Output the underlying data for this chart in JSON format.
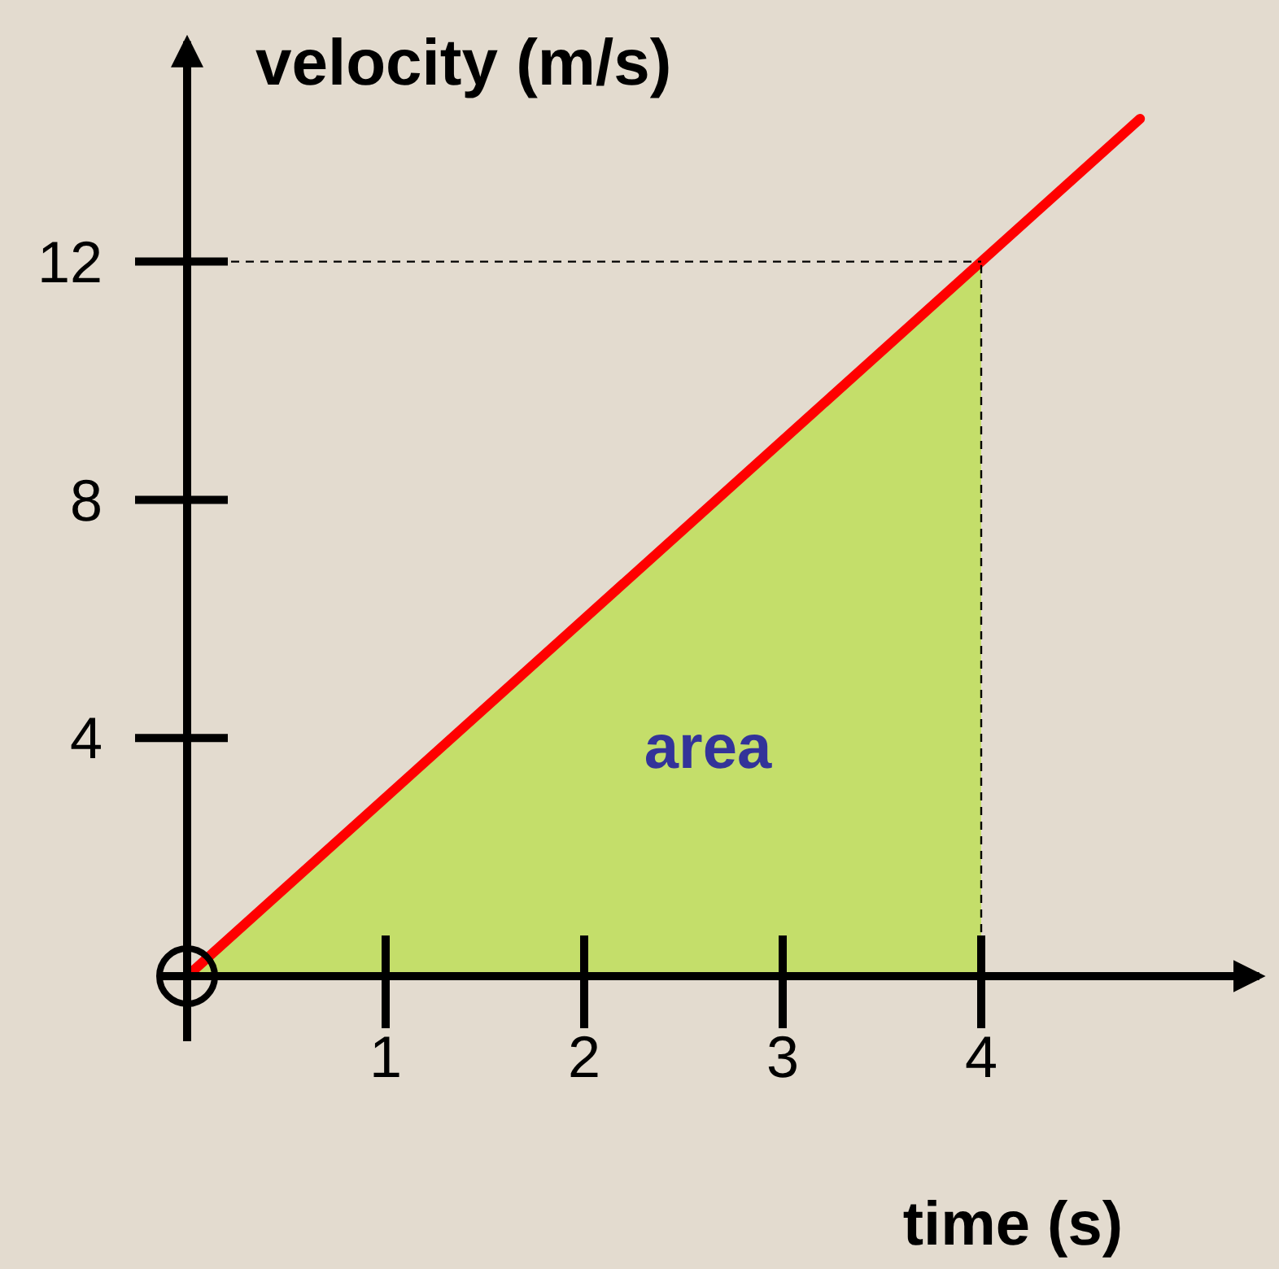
{
  "chart_data": {
    "type": "line",
    "xlabel": "time (s)",
    "ylabel": "velocity (m/s)",
    "xlim": [
      0,
      5.4
    ],
    "ylim": [
      0,
      15.7
    ],
    "xticks": [
      1,
      2,
      3,
      4
    ],
    "yticks": [
      4,
      8,
      12
    ],
    "series": [
      {
        "type": "area",
        "color": "#c4de6a",
        "x": [
          0,
          4
        ],
        "values": [
          0,
          12
        ]
      },
      {
        "color": "#ff0000",
        "x": [
          0,
          4.8
        ],
        "values": [
          0,
          14.4
        ]
      }
    ],
    "ref_lines": [
      {
        "axis": "y",
        "value": 12,
        "label": null,
        "line_style": "dashed",
        "color": "#000000"
      },
      {
        "axis": "x",
        "value": 4,
        "label": null,
        "line_style": "dashed",
        "color": "#000000"
      }
    ],
    "annotations": [
      "area"
    ]
  }
}
